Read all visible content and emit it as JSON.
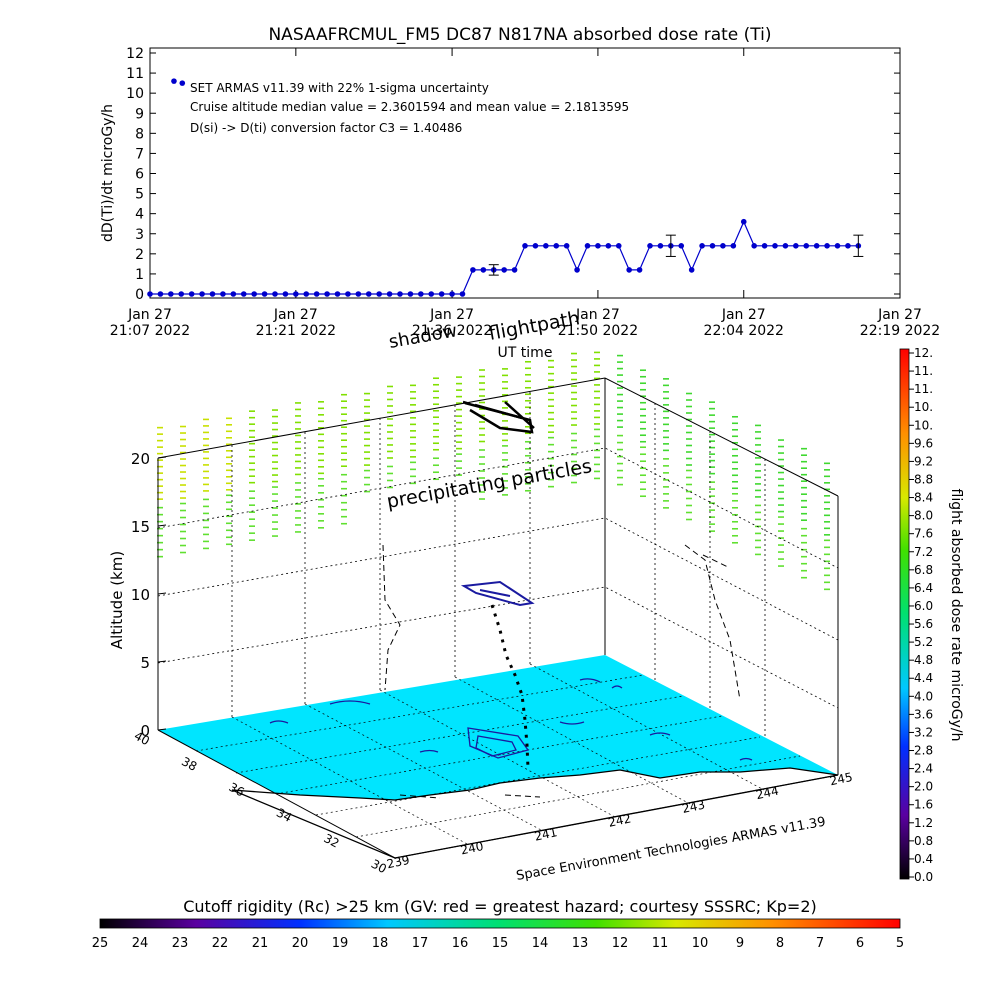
{
  "colors": {
    "series": "#0000cc",
    "surface": "#00e5ff",
    "axis": "#000000",
    "contour": "#1a1aa0"
  },
  "chart_data": [
    {
      "type": "line",
      "title": "NASAAFRCMUL_FM5 DC87 N817NA absorbed dose rate (Ti)",
      "xlabel": "UT time",
      "ylabel": "dD(Ti)/dt microGy/h",
      "ylim": [
        0,
        12
      ],
      "grid": false,
      "yticks": [
        "0",
        "1",
        "2",
        "3",
        "4",
        "5",
        "6",
        "7",
        "8",
        "9",
        "10",
        "11",
        "12"
      ],
      "xticks": [
        {
          "top": "Jan 27",
          "bottom": "21:07 2022",
          "value": 0
        },
        {
          "top": "Jan 27",
          "bottom": "21:21 2022",
          "value": 14
        },
        {
          "top": "Jan 27",
          "bottom": "21:36 2022",
          "value": 29
        },
        {
          "top": "Jan 27",
          "bottom": "21:50 2022",
          "value": 43
        },
        {
          "top": "Jan 27",
          "bottom": "22:04 2022",
          "value": 57
        },
        {
          "top": "Jan 27",
          "bottom": "22:19 2022",
          "value": 72
        }
      ],
      "annotations": [
        "SET ARMAS v11.39 with 22% 1-sigma uncertainty",
        "Cruise altitude median value = 2.3601594 and mean value = 2.1813595",
        "D(si) -> D(ti) conversion factor C3 = 1.40486"
      ],
      "outliers": [
        {
          "x": 2.3,
          "y": 10.6
        },
        {
          "x": 3.1,
          "y": 10.5
        }
      ],
      "x": [
        0,
        1,
        2,
        3,
        4,
        5,
        6,
        7,
        8,
        9,
        10,
        11,
        12,
        13,
        14,
        15,
        16,
        17,
        18,
        19,
        20,
        21,
        22,
        23,
        24,
        25,
        26,
        27,
        28,
        29,
        30,
        31,
        32,
        33,
        34,
        35,
        36,
        37,
        38,
        39,
        40,
        41,
        42,
        43,
        44,
        45,
        46,
        47,
        48,
        49,
        50,
        51,
        52,
        53,
        54,
        55,
        56,
        57,
        58,
        59,
        60,
        61,
        62,
        63,
        64,
        65,
        66,
        67,
        68
      ],
      "y": [
        0,
        0,
        0,
        0,
        0,
        0,
        0,
        0,
        0,
        0,
        0,
        0,
        0,
        0,
        0,
        0,
        0,
        0,
        0,
        0,
        0,
        0,
        0,
        0,
        0,
        0,
        0,
        0,
        0,
        0,
        0,
        1.2,
        1.2,
        1.2,
        1.2,
        1.2,
        2.4,
        2.4,
        2.4,
        2.4,
        2.4,
        1.2,
        2.4,
        2.4,
        2.4,
        2.4,
        1.2,
        1.2,
        2.4,
        2.4,
        2.4,
        2.4,
        1.2,
        2.4,
        2.4,
        2.4,
        2.4,
        3.6,
        2.4,
        2.4,
        2.4,
        2.4,
        2.4,
        2.4,
        2.4,
        2.4,
        2.4,
        2.4,
        2.4
      ],
      "error_bars": [
        {
          "x": 33,
          "y": 1.2,
          "err": 0.26
        },
        {
          "x": 50,
          "y": 2.4,
          "err": 0.53
        },
        {
          "x": 68,
          "y": 2.4,
          "err": 0.53
        }
      ]
    },
    {
      "type": "heatmap",
      "title": "",
      "zlabel": "Altitude (km)",
      "zticks": [
        "0",
        "5",
        "10",
        "15",
        "20"
      ],
      "lat_ticks": [
        "30",
        "32",
        "34",
        "36",
        "38",
        "40"
      ],
      "lon_ticks": [
        "239",
        "240",
        "241",
        "242",
        "243",
        "244",
        "245"
      ],
      "labels": [
        "shadow",
        "flightpath",
        "precipitating particles"
      ],
      "credit": "Space Environment Technologies ARMAS v11.39",
      "colorbar": {
        "label": "flight absorbed dose rate microGy/h",
        "ticks": [
          "0.0",
          "0.4",
          "0.8",
          "1.2",
          "1.6",
          "2.0",
          "2.4",
          "2.8",
          "3.2",
          "3.6",
          "4.0",
          "4.4",
          "4.8",
          "5.2",
          "5.6",
          "6.0",
          "6.4",
          "6.8",
          "7.2",
          "7.6",
          "8.0",
          "8.4",
          "8.8",
          "9.2",
          "9.6",
          "10.",
          "10.",
          "11.",
          "11.",
          "12."
        ]
      },
      "rigidity_bar": {
        "label": "Cutoff rigidity (Rc) >25 km (GV: red = greatest hazard; courtesy SSSRC; Kp=2)",
        "ticks": [
          "25",
          "24",
          "23",
          "22",
          "21",
          "20",
          "19",
          "18",
          "17",
          "16",
          "15",
          "14",
          "13",
          "12",
          "11",
          "10",
          "9",
          "8",
          "7",
          "6",
          "5"
        ]
      }
    }
  ]
}
